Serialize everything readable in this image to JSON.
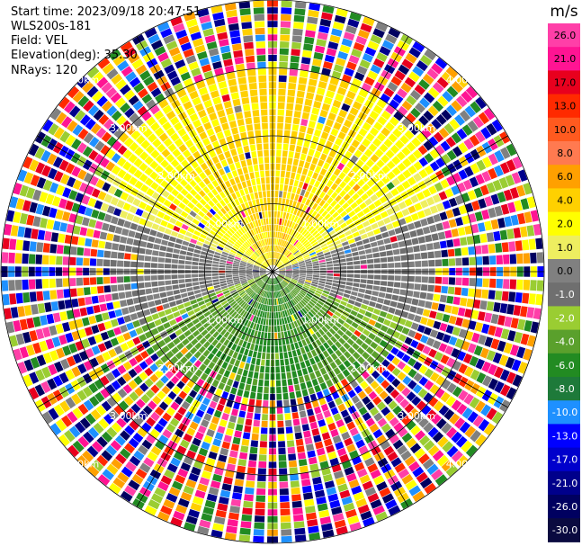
{
  "header": {
    "start_time": "Start time: 2023/09/18 20:47:51",
    "instrument": "WLS200s-181",
    "field": "Field: VEL",
    "elevation": "Elevation(deg): 35.30",
    "nrays": "NRays: 120"
  },
  "colorbar": {
    "unit": "m/s",
    "labels": [
      "26.0",
      "21.0",
      "17.0",
      "13.0",
      "10.0",
      "8.0",
      "6.0",
      "4.0",
      "2.0",
      "1.0",
      "0.0",
      "-1.0",
      "-2.0",
      "-4.0",
      "-6.0",
      "-8.0",
      "-10.0",
      "-13.0",
      "-17.0",
      "-21.0",
      "-26.0",
      "-30.0"
    ],
    "colors": [
      "#ff3fa8",
      "#ff1493",
      "#e8001e",
      "#ff2a00",
      "#ff5a1f",
      "#ff7a50",
      "#ffa000",
      "#ffd000",
      "#ffff00",
      "#eeee60",
      "#808080",
      "#6f6f6f",
      "#9acd32",
      "#5aa02c",
      "#228b22",
      "#1e7a3a",
      "#1e90ff",
      "#0000ff",
      "#0000cc",
      "#00008b",
      "#000060",
      "#0a0a40"
    ]
  },
  "chart_data": {
    "type": "heatmap",
    "title": "",
    "projection": "polar PPI",
    "n_rays": 120,
    "range_ring_labels": [
      "1.00km",
      "2.00km",
      "3.00km",
      "4.00km"
    ],
    "range_rings_km": [
      1,
      2,
      3,
      4
    ],
    "max_range_km": 4,
    "velocity_range": [
      -30,
      26
    ],
    "unit": "m/s",
    "description_regions": [
      {
        "sector": "north",
        "range_km": [
          0,
          2.8
        ],
        "velocity_ms": 4
      },
      {
        "sector": "south",
        "range_km": [
          0,
          2.8
        ],
        "velocity_ms": -6
      },
      {
        "sector": "east-west",
        "range_km": [
          0,
          2.5
        ],
        "velocity_ms": 0
      },
      {
        "sector": "all",
        "range_km": [
          2.8,
          4.0
        ],
        "velocity_ms": "noise"
      }
    ]
  }
}
